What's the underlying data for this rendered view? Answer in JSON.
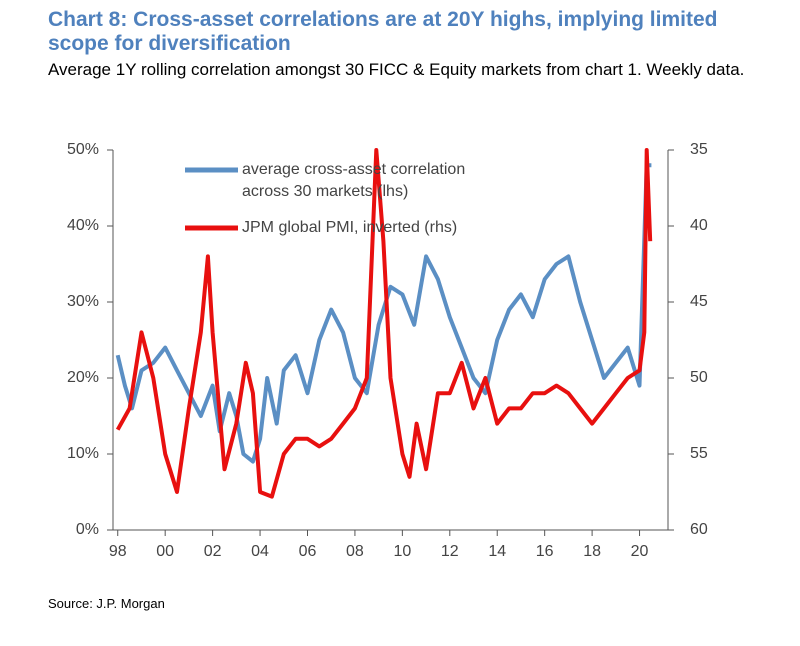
{
  "chart_data": {
    "type": "line",
    "title": "Chart 8: Cross-asset correlations are at 20Y highs, implying limited scope for diversification",
    "subtitle": "Average 1Y rolling correlation amongst 30 FICC & Equity markets from chart 1. Weekly data.",
    "source": "Source: J.P. Morgan",
    "xlim": [
      1997.8,
      2021.2
    ],
    "xticks": [
      {
        "value": 1998,
        "label": "98"
      },
      {
        "value": 2000,
        "label": "00"
      },
      {
        "value": 2002,
        "label": "02"
      },
      {
        "value": 2004,
        "label": "04"
      },
      {
        "value": 2006,
        "label": "06"
      },
      {
        "value": 2008,
        "label": "08"
      },
      {
        "value": 2010,
        "label": "10"
      },
      {
        "value": 2012,
        "label": "12"
      },
      {
        "value": 2014,
        "label": "14"
      },
      {
        "value": 2016,
        "label": "16"
      },
      {
        "value": 2018,
        "label": "18"
      },
      {
        "value": 2020,
        "label": "20"
      }
    ],
    "ylim": [
      0,
      50
    ],
    "yticks": [
      {
        "value": 0,
        "label": "0%"
      },
      {
        "value": 10,
        "label": "10%"
      },
      {
        "value": 20,
        "label": "20%"
      },
      {
        "value": 30,
        "label": "30%"
      },
      {
        "value": 40,
        "label": "40%"
      },
      {
        "value": 50,
        "label": "50%"
      }
    ],
    "y2lim": [
      60,
      35
    ],
    "y2ticks": [
      35,
      40,
      45,
      50,
      55,
      60
    ],
    "grid": false,
    "series": [
      {
        "name": "average cross-asset correlation across 30 markets (lhs)",
        "color": "#5b8fc4",
        "axis": "y",
        "x": [
          1998.0,
          1998.3,
          1998.6,
          1999.0,
          1999.5,
          2000.0,
          2000.5,
          2001.0,
          2001.5,
          2002.0,
          2002.3,
          2002.7,
          2003.0,
          2003.3,
          2003.7,
          2004.0,
          2004.3,
          2004.7,
          2005.0,
          2005.5,
          2006.0,
          2006.5,
          2007.0,
          2007.5,
          2008.0,
          2008.5,
          2009.0,
          2009.5,
          2010.0,
          2010.5,
          2011.0,
          2011.5,
          2012.0,
          2012.5,
          2013.0,
          2013.5,
          2014.0,
          2014.5,
          2015.0,
          2015.5,
          2016.0,
          2016.5,
          2017.0,
          2017.5,
          2018.0,
          2018.5,
          2019.0,
          2019.5,
          2020.0,
          2020.3,
          2020.5
        ],
        "values": [
          23,
          19,
          16,
          21,
          22,
          24,
          21,
          18,
          15,
          19,
          13,
          18,
          15,
          10,
          9,
          12,
          20,
          14,
          21,
          23,
          18,
          25,
          29,
          26,
          20,
          18,
          27,
          32,
          31,
          27,
          36,
          33,
          28,
          24,
          20,
          18,
          25,
          29,
          31,
          28,
          33,
          35,
          36,
          30,
          25,
          20,
          22,
          24,
          19,
          48,
          48
        ]
      },
      {
        "name": "JPM global PMI, inverted (rhs)",
        "color": "#e8100f",
        "axis": "y2",
        "x": [
          1998.0,
          1998.5,
          1999.0,
          1999.5,
          2000.0,
          2000.5,
          2001.0,
          2001.5,
          2001.8,
          2002.0,
          2002.5,
          2003.0,
          2003.4,
          2003.7,
          2004.0,
          2004.5,
          2005.0,
          2005.5,
          2006.0,
          2006.5,
          2007.0,
          2007.5,
          2008.0,
          2008.5,
          2008.9,
          2009.2,
          2009.5,
          2010.0,
          2010.3,
          2010.6,
          2011.0,
          2011.5,
          2012.0,
          2012.5,
          2013.0,
          2013.5,
          2014.0,
          2014.5,
          2015.0,
          2015.5,
          2016.0,
          2016.5,
          2017.0,
          2017.5,
          2018.0,
          2018.5,
          2019.0,
          2019.5,
          2020.0,
          2020.2,
          2020.3,
          2020.45
        ],
        "values": [
          53.4,
          52,
          47,
          50,
          55,
          57.5,
          52,
          47,
          42,
          47,
          56,
          53,
          49,
          51,
          57.5,
          57.8,
          55,
          54,
          54,
          54.5,
          54,
          53,
          52,
          50,
          35,
          41,
          50,
          55,
          56.5,
          53,
          56,
          51,
          51,
          49,
          52,
          50,
          53,
          52,
          52,
          51,
          51,
          50.5,
          51,
          52,
          53,
          52,
          51,
          50,
          49.5,
          47,
          35,
          41
        ]
      }
    ]
  }
}
